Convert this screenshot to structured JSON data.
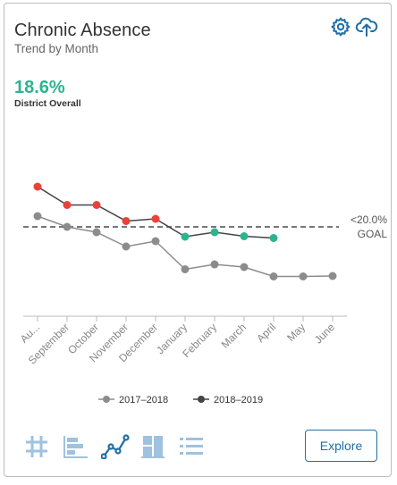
{
  "card": {
    "title": "Chronic Absence",
    "subtitle": "Trend by Month",
    "metric_value": "18.6%",
    "metric_label": "District Overall"
  },
  "toolbar": {
    "settings_icon": "gear-icon",
    "export_icon": "cloud-upload-icon"
  },
  "chart_data": {
    "type": "line",
    "categories": [
      "Au...",
      "September",
      "October",
      "November",
      "December",
      "January",
      "February",
      "March",
      "April",
      "May",
      "June"
    ],
    "ylim": [
      0,
      40
    ],
    "series": [
      {
        "name": "2017-2018",
        "color": "#8c8c8c",
        "values": [
          22.4,
          20.0,
          18.8,
          15.6,
          16.8,
          10.5,
          11.6,
          11.0,
          8.9,
          8.9,
          9.0
        ]
      },
      {
        "name": "2018-2019",
        "color": "#444444",
        "values": [
          29.0,
          24.9,
          24.9,
          21.3,
          21.8,
          17.8,
          18.8,
          17.9,
          17.5,
          null,
          null
        ],
        "point_colors": [
          "#e8433a",
          "#e8433a",
          "#e8433a",
          "#e8433a",
          "#e8433a",
          "#2bb58e",
          "#2bb58e",
          "#2bb58e",
          "#2bb58e"
        ]
      }
    ],
    "goal": {
      "value": 20.0,
      "label": "<20.0%",
      "label2": "GOAL"
    }
  },
  "legend": [
    {
      "label": "2017–2018",
      "color": "#8c8c8c"
    },
    {
      "label": "2018–2019",
      "color": "#444444"
    }
  ],
  "views": [
    {
      "name": "number-view-icon",
      "active": false
    },
    {
      "name": "bar-view-icon",
      "active": false
    },
    {
      "name": "trend-view-icon",
      "active": true
    },
    {
      "name": "block-view-icon",
      "active": false
    },
    {
      "name": "list-view-icon",
      "active": false
    }
  ],
  "explore_label": "Explore",
  "colors": {
    "accent": "#1f6fa6",
    "good": "#2bb58e",
    "bad": "#e8433a",
    "inactive_icon": "#9ec2e0"
  }
}
